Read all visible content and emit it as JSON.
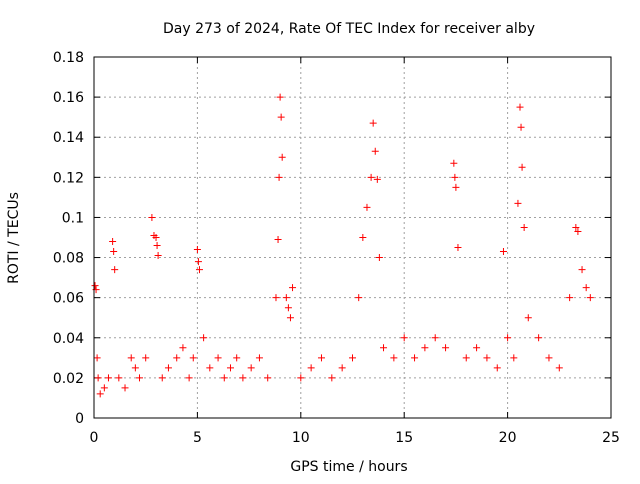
{
  "chart_data": {
    "type": "scatter",
    "title": "Day 273 of 2024, Rate Of TEC Index for receiver alby",
    "xlabel": "GPS time / hours",
    "ylabel": "ROTI / TECUs",
    "xlim": [
      0,
      25
    ],
    "ylim": [
      0,
      0.18
    ],
    "xticks": [
      0,
      5,
      10,
      15,
      20,
      25
    ],
    "xtick_labels": [
      "0",
      "5",
      "10",
      "15",
      "20",
      "25"
    ],
    "yticks": [
      0,
      0.02,
      0.04,
      0.06,
      0.08,
      0.1,
      0.12,
      0.14,
      0.16,
      0.18
    ],
    "ytick_labels": [
      "0",
      "0.02",
      "0.04",
      "0.06",
      "0.08",
      "0.1",
      "0.12",
      "0.14",
      "0.16",
      "0.18"
    ],
    "grid": true,
    "marker": "+",
    "series": [
      {
        "name": "ROTI",
        "color": "#ff0000",
        "x": [
          0.05,
          0.1,
          0.15,
          0.2,
          0.3,
          0.5,
          0.7,
          0.9,
          0.95,
          1.0,
          1.2,
          1.5,
          1.8,
          2.0,
          2.2,
          2.5,
          2.8,
          2.9,
          3.0,
          3.05,
          3.1,
          3.3,
          3.6,
          4.0,
          4.3,
          4.6,
          4.8,
          5.0,
          5.05,
          5.1,
          5.3,
          5.6,
          6.0,
          6.3,
          6.6,
          6.9,
          7.2,
          7.6,
          8.0,
          8.4,
          8.8,
          8.9,
          8.95,
          9.0,
          9.05,
          9.1,
          9.3,
          9.4,
          9.5,
          9.6,
          10.0,
          10.5,
          11.0,
          11.5,
          12.0,
          12.5,
          12.8,
          13.0,
          13.2,
          13.4,
          13.5,
          13.6,
          13.7,
          13.8,
          14.0,
          14.5,
          15.0,
          15.5,
          16.0,
          16.5,
          17.0,
          17.4,
          17.45,
          17.5,
          17.6,
          18.0,
          18.5,
          19.0,
          19.5,
          19.8,
          20.0,
          20.3,
          20.5,
          20.6,
          20.65,
          20.7,
          20.8,
          21.0,
          21.5,
          22.0,
          22.5,
          23.0,
          23.3,
          23.4,
          23.6,
          23.8,
          24.0
        ],
        "y": [
          0.066,
          0.064,
          0.03,
          0.02,
          0.012,
          0.015,
          0.02,
          0.088,
          0.083,
          0.074,
          0.02,
          0.015,
          0.03,
          0.025,
          0.02,
          0.03,
          0.1,
          0.091,
          0.09,
          0.086,
          0.081,
          0.02,
          0.025,
          0.03,
          0.035,
          0.02,
          0.03,
          0.084,
          0.078,
          0.074,
          0.04,
          0.025,
          0.03,
          0.02,
          0.025,
          0.03,
          0.02,
          0.025,
          0.03,
          0.02,
          0.06,
          0.089,
          0.12,
          0.16,
          0.15,
          0.13,
          0.06,
          0.055,
          0.05,
          0.065,
          0.02,
          0.025,
          0.03,
          0.02,
          0.025,
          0.03,
          0.06,
          0.09,
          0.105,
          0.12,
          0.147,
          0.133,
          0.119,
          0.08,
          0.035,
          0.03,
          0.04,
          0.03,
          0.035,
          0.04,
          0.035,
          0.127,
          0.12,
          0.115,
          0.085,
          0.03,
          0.035,
          0.03,
          0.025,
          0.083,
          0.04,
          0.03,
          0.107,
          0.155,
          0.145,
          0.125,
          0.095,
          0.05,
          0.04,
          0.03,
          0.025,
          0.06,
          0.095,
          0.093,
          0.074,
          0.065,
          0.06
        ]
      }
    ]
  }
}
